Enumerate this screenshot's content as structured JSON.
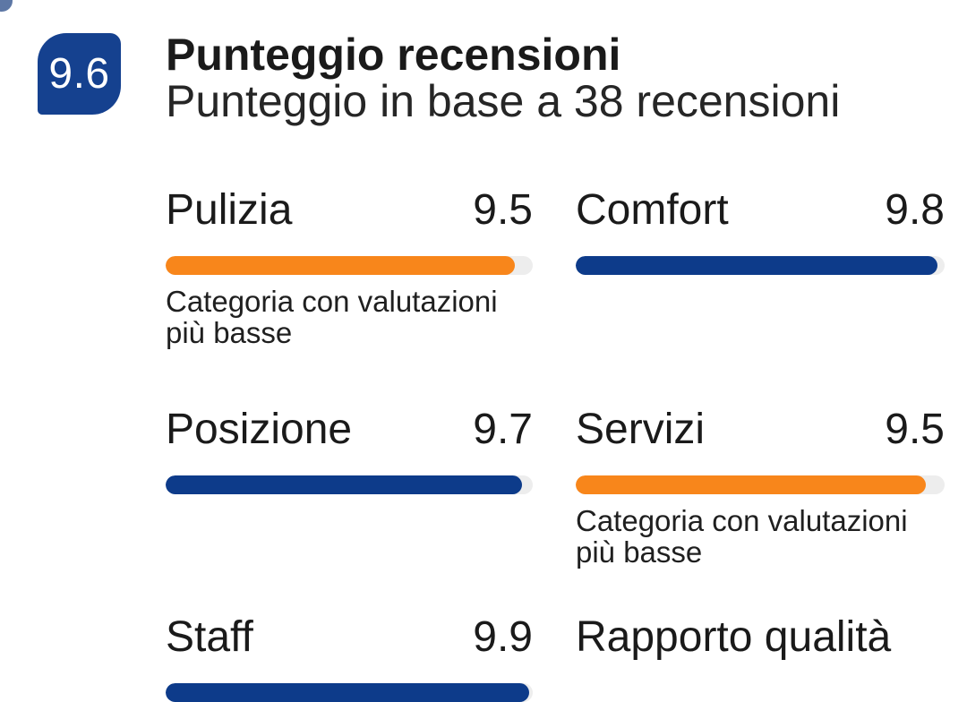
{
  "header": {
    "overall_score": "9.6",
    "title": "Punteggio recensioni",
    "subtitle": "Punteggio in base a 38 recensioni"
  },
  "categories": [
    {
      "label": "Pulizia",
      "score": "9.5",
      "value": 9.5,
      "bar_color": "orange",
      "note": "Categoria con valutazioni più basse"
    },
    {
      "label": "Comfort",
      "score": "9.8",
      "value": 9.8,
      "bar_color": "blue",
      "note": ""
    },
    {
      "label": "Posizione",
      "score": "9.7",
      "value": 9.7,
      "bar_color": "blue",
      "note": ""
    },
    {
      "label": "Servizi",
      "score": "9.5",
      "value": 9.5,
      "bar_color": "orange",
      "note": "Categoria con valutazioni più basse"
    },
    {
      "label": "Staff",
      "score": "9.9",
      "value": 9.9,
      "bar_color": "blue",
      "note": ""
    },
    {
      "label": "Rapporto qualità",
      "score": "",
      "value": null,
      "bar_color": null,
      "note": ""
    }
  ],
  "colors": {
    "badge_blue": "#15418f",
    "bar_blue": "#0d3b8a",
    "bar_orange": "#f8861b",
    "bar_track": "#ededed",
    "text": "#1a1a1a"
  }
}
